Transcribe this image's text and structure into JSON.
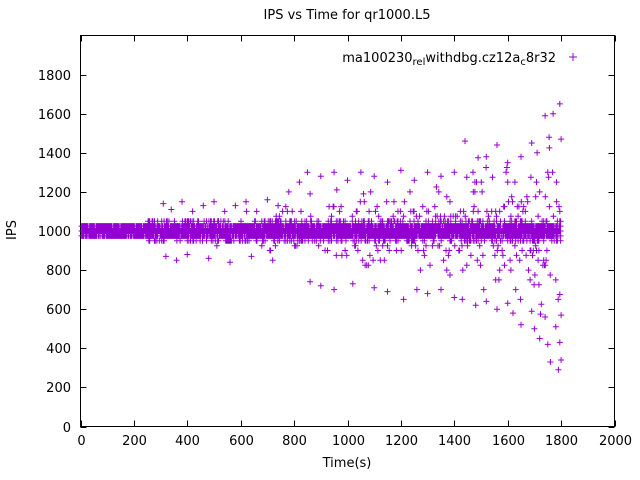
{
  "chart_data": {
    "type": "scatter",
    "title": "IPS vs Time for qr1000.L5",
    "xlabel": "Time(s)",
    "ylabel": "IPS",
    "xlim": [
      0,
      2000
    ],
    "ylim": [
      0,
      2000
    ],
    "xticks": [
      0,
      200,
      400,
      600,
      800,
      1000,
      1200,
      1400,
      1600,
      1800,
      2000
    ],
    "yticks": [
      0,
      200,
      400,
      600,
      800,
      1000,
      1200,
      1400,
      1600,
      1800
    ],
    "grid": false,
    "marker": "plus",
    "color": "#9400D3",
    "legend": {
      "position": "top-right-inside",
      "label": "ma100230_rel_withdbg.cz12a_c8r32",
      "segments": [
        {
          "text": "ma100230",
          "sub": false
        },
        {
          "text": "rel",
          "sub": true
        },
        {
          "text": "w",
          "sub": false
        },
        {
          "text": "ithdbg.cz12a",
          "sub": false
        },
        {
          "text": "c",
          "sub": true
        },
        {
          "text": "8r32",
          "sub": false
        }
      ]
    },
    "description": "Dense band of IPS samples near 1000 that fans out over time, widening to roughly 300-1650 IPS by t=1800s",
    "generator": {
      "seed": 20,
      "t_start": 4,
      "t_end": 1800,
      "t_step": 3,
      "base": 1000,
      "quantum": 25,
      "fan_start": 200,
      "spread_min": 60,
      "spread_max": 520,
      "spread_pow": 1.7,
      "y_min": 300,
      "y_max": 1650
    },
    "outliers": [
      [
        310,
        1140
      ],
      [
        340,
        1110
      ],
      [
        380,
        1150
      ],
      [
        420,
        1100
      ],
      [
        460,
        1130
      ],
      [
        500,
        1150
      ],
      [
        540,
        1100
      ],
      [
        580,
        1130
      ],
      [
        620,
        1150
      ],
      [
        660,
        1100
      ],
      [
        700,
        1160
      ],
      [
        740,
        1130
      ],
      [
        320,
        870
      ],
      [
        360,
        850
      ],
      [
        400,
        880
      ],
      [
        480,
        860
      ],
      [
        560,
        840
      ],
      [
        640,
        870
      ],
      [
        720,
        850
      ],
      [
        780,
        1200
      ],
      [
        820,
        1250
      ],
      [
        850,
        1300
      ],
      [
        860,
        1190
      ],
      [
        900,
        1280
      ],
      [
        950,
        1300
      ],
      [
        960,
        1210
      ],
      [
        1000,
        1260
      ],
      [
        1050,
        1300
      ],
      [
        1060,
        1190
      ],
      [
        1100,
        1280
      ],
      [
        1150,
        1250
      ],
      [
        1200,
        1310
      ],
      [
        1250,
        1260
      ],
      [
        1300,
        1300
      ],
      [
        1350,
        1280
      ],
      [
        1400,
        1300
      ],
      [
        1440,
        1460
      ],
      [
        1470,
        1300
      ],
      [
        1520,
        1380
      ],
      [
        1560,
        1440
      ],
      [
        1600,
        1350
      ],
      [
        1650,
        1380
      ],
      [
        1690,
        1450
      ],
      [
        1710,
        1400
      ],
      [
        1740,
        1590
      ],
      [
        1755,
        1480
      ],
      [
        1770,
        1600
      ],
      [
        1795,
        1650
      ],
      [
        1800,
        1470
      ],
      [
        860,
        740
      ],
      [
        900,
        720
      ],
      [
        950,
        700
      ],
      [
        1020,
        730
      ],
      [
        1100,
        710
      ],
      [
        1150,
        690
      ],
      [
        1210,
        650
      ],
      [
        1260,
        700
      ],
      [
        1300,
        680
      ],
      [
        1350,
        700
      ],
      [
        1400,
        660
      ],
      [
        1430,
        650
      ],
      [
        1480,
        620
      ],
      [
        1520,
        640
      ],
      [
        1560,
        600
      ],
      [
        1600,
        630
      ],
      [
        1620,
        580
      ],
      [
        1650,
        520
      ],
      [
        1690,
        590
      ],
      [
        1700,
        500
      ],
      [
        1720,
        450
      ],
      [
        1740,
        560
      ],
      [
        1750,
        420
      ],
      [
        1760,
        330
      ],
      [
        1780,
        510
      ],
      [
        1790,
        290
      ],
      [
        1795,
        430
      ],
      [
        1800,
        340
      ],
      [
        1800,
        570
      ]
    ]
  }
}
